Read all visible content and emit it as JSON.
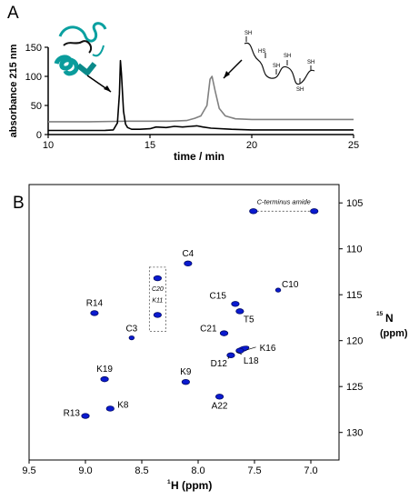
{
  "panels": {
    "a_label": "A",
    "b_label": "B"
  },
  "chart_data": [
    {
      "type": "line",
      "panel": "A",
      "xlabel": "time / min",
      "ylabel": "absorbance 215 nm",
      "xlim": [
        10,
        25
      ],
      "ylim": [
        0,
        150
      ],
      "xticks": [
        10,
        15,
        20,
        25
      ],
      "yticks": [
        0,
        50,
        100,
        150
      ],
      "grid": false,
      "series": [
        {
          "color": "#000000",
          "x": [
            10,
            11,
            12,
            12.8,
            13.2,
            13.4,
            13.5,
            13.55,
            13.6,
            13.7,
            13.8,
            13.9,
            14.1,
            14.5,
            15,
            15.3,
            15.8,
            16.2,
            16.6,
            17,
            17.3,
            17.6,
            18,
            19,
            20,
            22,
            25
          ],
          "y": [
            7,
            7,
            7,
            7.2,
            8,
            20,
            70,
            127,
            105,
            40,
            18,
            12,
            9,
            9,
            10,
            13,
            12,
            14,
            13,
            14,
            15,
            13,
            11,
            9,
            8,
            8,
            8
          ]
        },
        {
          "color": "#808080",
          "x": [
            10,
            12,
            14,
            16,
            16.8,
            17.2,
            17.5,
            17.8,
            17.95,
            18.05,
            18.2,
            18.4,
            18.7,
            19.2,
            20,
            22,
            25
          ],
          "y": [
            22,
            22,
            23,
            23,
            24,
            28,
            32,
            50,
            95,
            100,
            75,
            45,
            32,
            27,
            26,
            26,
            26
          ]
        }
      ],
      "annotations": [
        {
          "type": "folded-structure",
          "color": "#0aa0a0"
        },
        {
          "type": "linear-chain",
          "labels": [
            "SH",
            "HS",
            "SH",
            "SH",
            "SH",
            "SH"
          ]
        }
      ]
    },
    {
      "type": "scatter",
      "panel": "B",
      "xlabel_super": "1",
      "xlabel_main": "H (ppm)",
      "ylabel_super": "15",
      "ylabel_main": "N",
      "ylabel_unit": "(ppm)",
      "x_reversed": true,
      "y_reversed": true,
      "xlim": [
        9.5,
        6.75
      ],
      "ylim": [
        103,
        133
      ],
      "xticks": [
        9.5,
        9.0,
        8.5,
        8.0,
        7.5,
        7.0
      ],
      "yticks": [
        105,
        110,
        115,
        120,
        125,
        130
      ],
      "grid": false,
      "peak_color": "#0a1ad0",
      "peaks": [
        {
          "label": "C4",
          "x": 8.09,
          "y": 111.6
        },
        {
          "label": "C15",
          "x": 7.67,
          "y": 116.0
        },
        {
          "label": "T5",
          "x": 7.63,
          "y": 116.8
        },
        {
          "label": "C10",
          "x": 7.29,
          "y": 114.5
        },
        {
          "label": "R14",
          "x": 8.92,
          "y": 117.0
        },
        {
          "label": "C3",
          "x": 8.59,
          "y": 119.7
        },
        {
          "label": "C21",
          "x": 7.77,
          "y": 119.2
        },
        {
          "label": "K16",
          "x": 7.6,
          "y": 120.9
        },
        {
          "label": "D12",
          "x": 7.71,
          "y": 121.6
        },
        {
          "label": "L18",
          "x": 7.63,
          "y": 121.1
        },
        {
          "label": "K19",
          "x": 8.83,
          "y": 124.2
        },
        {
          "label": "K9",
          "x": 8.11,
          "y": 124.5
        },
        {
          "label": "A22",
          "x": 7.81,
          "y": 126.1
        },
        {
          "label": "K8",
          "x": 8.78,
          "y": 127.4
        },
        {
          "label": "R13",
          "x": 9.0,
          "y": 128.2
        },
        {
          "label": "",
          "x": 8.36,
          "y": 113.2
        },
        {
          "label": "",
          "x": 8.36,
          "y": 117.2
        },
        {
          "label": "",
          "x": 7.51,
          "y": 105.9
        },
        {
          "label": "",
          "x": 6.97,
          "y": 105.9
        }
      ],
      "annotations": {
        "amide_label": "C-terminus amide",
        "boxed_label_1": "C20",
        "boxed_label_2": "K11"
      }
    }
  ]
}
